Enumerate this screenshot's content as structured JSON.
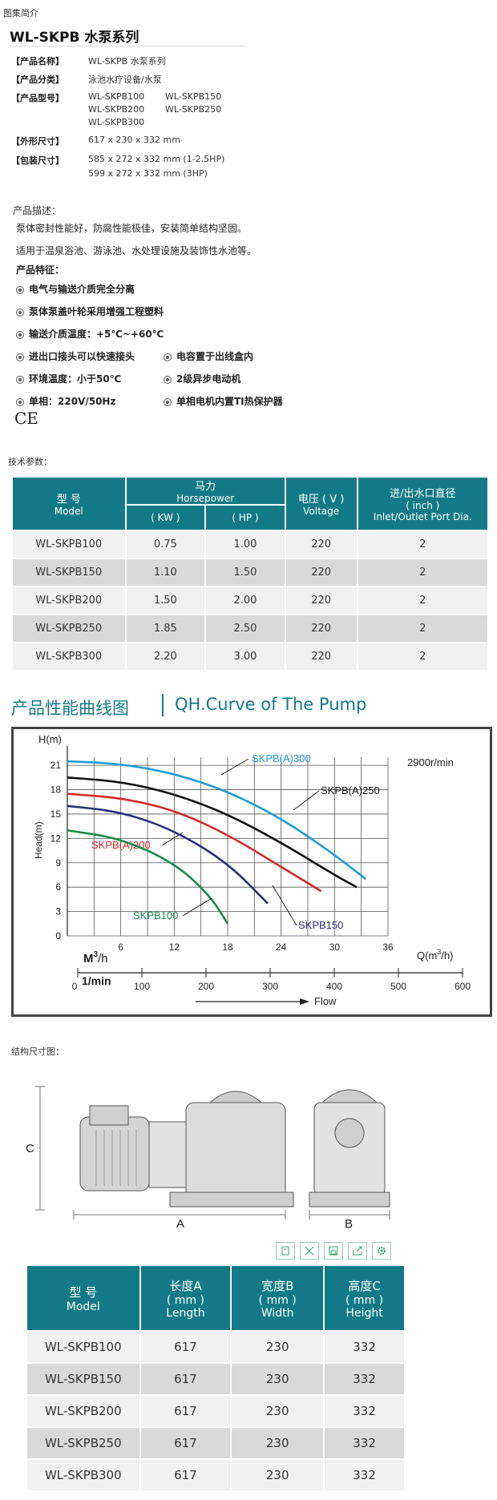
{
  "breadcrumb": "图集简介",
  "title": "WL-SKPB 水泵系列",
  "specs": {
    "name_label": "【产品名称】",
    "name_value": "WL-SKPB 水泵系列",
    "category_label": "【产品分类】",
    "category_value": "泳池水疗设备/水泵",
    "model_label": "【产品型号】",
    "models": [
      "WL-SKPB100",
      "WL-SKPB150",
      "WL-SKPB200",
      "WL-SKPB250",
      "WL-SKPB300"
    ],
    "size_label": "【外形尺寸】",
    "size_value": "617 x 230 x 332 mm",
    "package_label": "【包装尺寸】",
    "package_value_1": "585 x 272 x 332 mm (1-2.5HP)",
    "package_value_2": "599 x 272 x 332 mm (3HP)"
  },
  "description": {
    "heading": "产品描述：",
    "line1": "泵体密封性能好，防腐性能极佳，安装简单结构坚固。",
    "line2": "适用于温泉浴池、游泳池、水处理设施及装饰性水池等。",
    "features_heading": "产品特征：",
    "features": [
      "电气与输送介质完全分离",
      "泵体泵盖叶轮采用增强工程塑料",
      "输送介质温度：+5℃~+60℃",
      "进出口接头可以快速接头",
      "电容置于出线盒内",
      "环境温度：小于50℃",
      "2级异步电动机",
      "单相：220V/50Hz",
      "单相电机内置TI热保护器"
    ],
    "ce_mark": "CE"
  },
  "tech_heading": "技术参数：",
  "tech_table": {
    "h_model_cn": "型 号",
    "h_model_en": "Model",
    "h_power_cn": "马力",
    "h_power_en": "Horsepower",
    "h_kw": "( KW )",
    "h_hp": "( HP )",
    "h_voltage_cn": "电压 ( V )",
    "h_voltage_en": "Voltage",
    "h_port_cn": "进/出水口直径",
    "h_port_unit": "( inch )",
    "h_port_en": "Inlet/Outlet Port Dia.",
    "rows": [
      {
        "model": "WL-SKPB100",
        "kw": "0.75",
        "hp": "1.00",
        "v": "220",
        "d": "2"
      },
      {
        "model": "WL-SKPB150",
        "kw": "1.10",
        "hp": "1.50",
        "v": "220",
        "d": "2"
      },
      {
        "model": "WL-SKPB200",
        "kw": "1.50",
        "hp": "2.00",
        "v": "220",
        "d": "2"
      },
      {
        "model": "WL-SKPB250",
        "kw": "1.85",
        "hp": "2.50",
        "v": "220",
        "d": "2"
      },
      {
        "model": "WL-SKPB300",
        "kw": "2.20",
        "hp": "3.00",
        "v": "220",
        "d": "2"
      }
    ]
  },
  "curve_heading_cn": "产品性能曲线图",
  "curve_heading_en": "QH.Curve of The Pump",
  "chart_data": {
    "type": "line",
    "title": "",
    "ylabel": "Head(m)",
    "ytop_label": "H(m)",
    "xlabel": "Q(m3/h)",
    "xlabel_text": "Q(m",
    "xlabel_sup": "3",
    "xlabel_tail": "/h)",
    "speed_note": "2900r/min",
    "m3h_label": "M",
    "m3h_sup": "3",
    "m3h_tail": "/h",
    "lmin_label": "1/min",
    "flow_label": "Flow",
    "xlim": [
      0,
      36
    ],
    "ylim": [
      0,
      22
    ],
    "x_ticks": [
      "6",
      "12",
      "18",
      "24",
      "30",
      "36"
    ],
    "y_ticks": [
      "0",
      "3",
      "6",
      "9",
      "12",
      "15",
      "18",
      "21"
    ],
    "lmin_ticks": [
      "0",
      "100",
      "200",
      "300",
      "400",
      "500",
      "600"
    ],
    "series": [
      {
        "name": "SKPB(A)300",
        "color": "#1e9cd7",
        "x": [
          0,
          6,
          12,
          18,
          24,
          30,
          33.5
        ],
        "y": [
          21.5,
          21.2,
          20,
          17.8,
          14.5,
          10,
          7
        ]
      },
      {
        "name": "SKPB(A)250",
        "color": "#111111",
        "x": [
          0,
          6,
          12,
          18,
          24,
          30,
          32.5
        ],
        "y": [
          19.5,
          19,
          17.5,
          15,
          11.5,
          7.5,
          6
        ]
      },
      {
        "name": "SKPB(A)200",
        "color": "#d62728",
        "x": [
          0,
          6,
          12,
          18,
          24,
          28.5
        ],
        "y": [
          17.5,
          17,
          15.5,
          12.5,
          8.5,
          5.5
        ]
      },
      {
        "name": "SKPB150",
        "color": "#2b2f7a",
        "x": [
          0,
          6,
          12,
          18,
          22.5
        ],
        "y": [
          16,
          15.3,
          13,
          9,
          4
        ]
      },
      {
        "name": "SKPB100",
        "color": "#1a8a4a",
        "x": [
          0,
          6,
          12,
          16,
          18
        ],
        "y": [
          13,
          12,
          9,
          5,
          1.5
        ]
      }
    ]
  },
  "structure_heading": "结构尺寸图：",
  "dims": {
    "a": "A",
    "b": "B",
    "c": "C"
  },
  "toolbar_icons": [
    "copy-icon",
    "expand-icon",
    "save-icon",
    "share-icon",
    "settings-icon"
  ],
  "size_table": {
    "h_model_cn": "型 号",
    "h_model_en": "Model",
    "h_len_cn": "长度A",
    "h_len_unit": "( mm )",
    "h_len_en": "Length",
    "h_wid_cn": "宽度B",
    "h_wid_unit": "( mm )",
    "h_wid_en": "Width",
    "h_hei_cn": "高度C",
    "h_hei_unit": "( mm )",
    "h_hei_en": "Height",
    "rows": [
      {
        "model": "WL-SKPB100",
        "l": "617",
        "w": "230",
        "h": "332"
      },
      {
        "model": "WL-SKPB150",
        "l": "617",
        "w": "230",
        "h": "332"
      },
      {
        "model": "WL-SKPB200",
        "l": "617",
        "w": "230",
        "h": "332"
      },
      {
        "model": "WL-SKPB250",
        "l": "617",
        "w": "230",
        "h": "332"
      },
      {
        "model": "WL-SKPB300",
        "l": "617",
        "w": "230",
        "h": "332"
      }
    ]
  }
}
